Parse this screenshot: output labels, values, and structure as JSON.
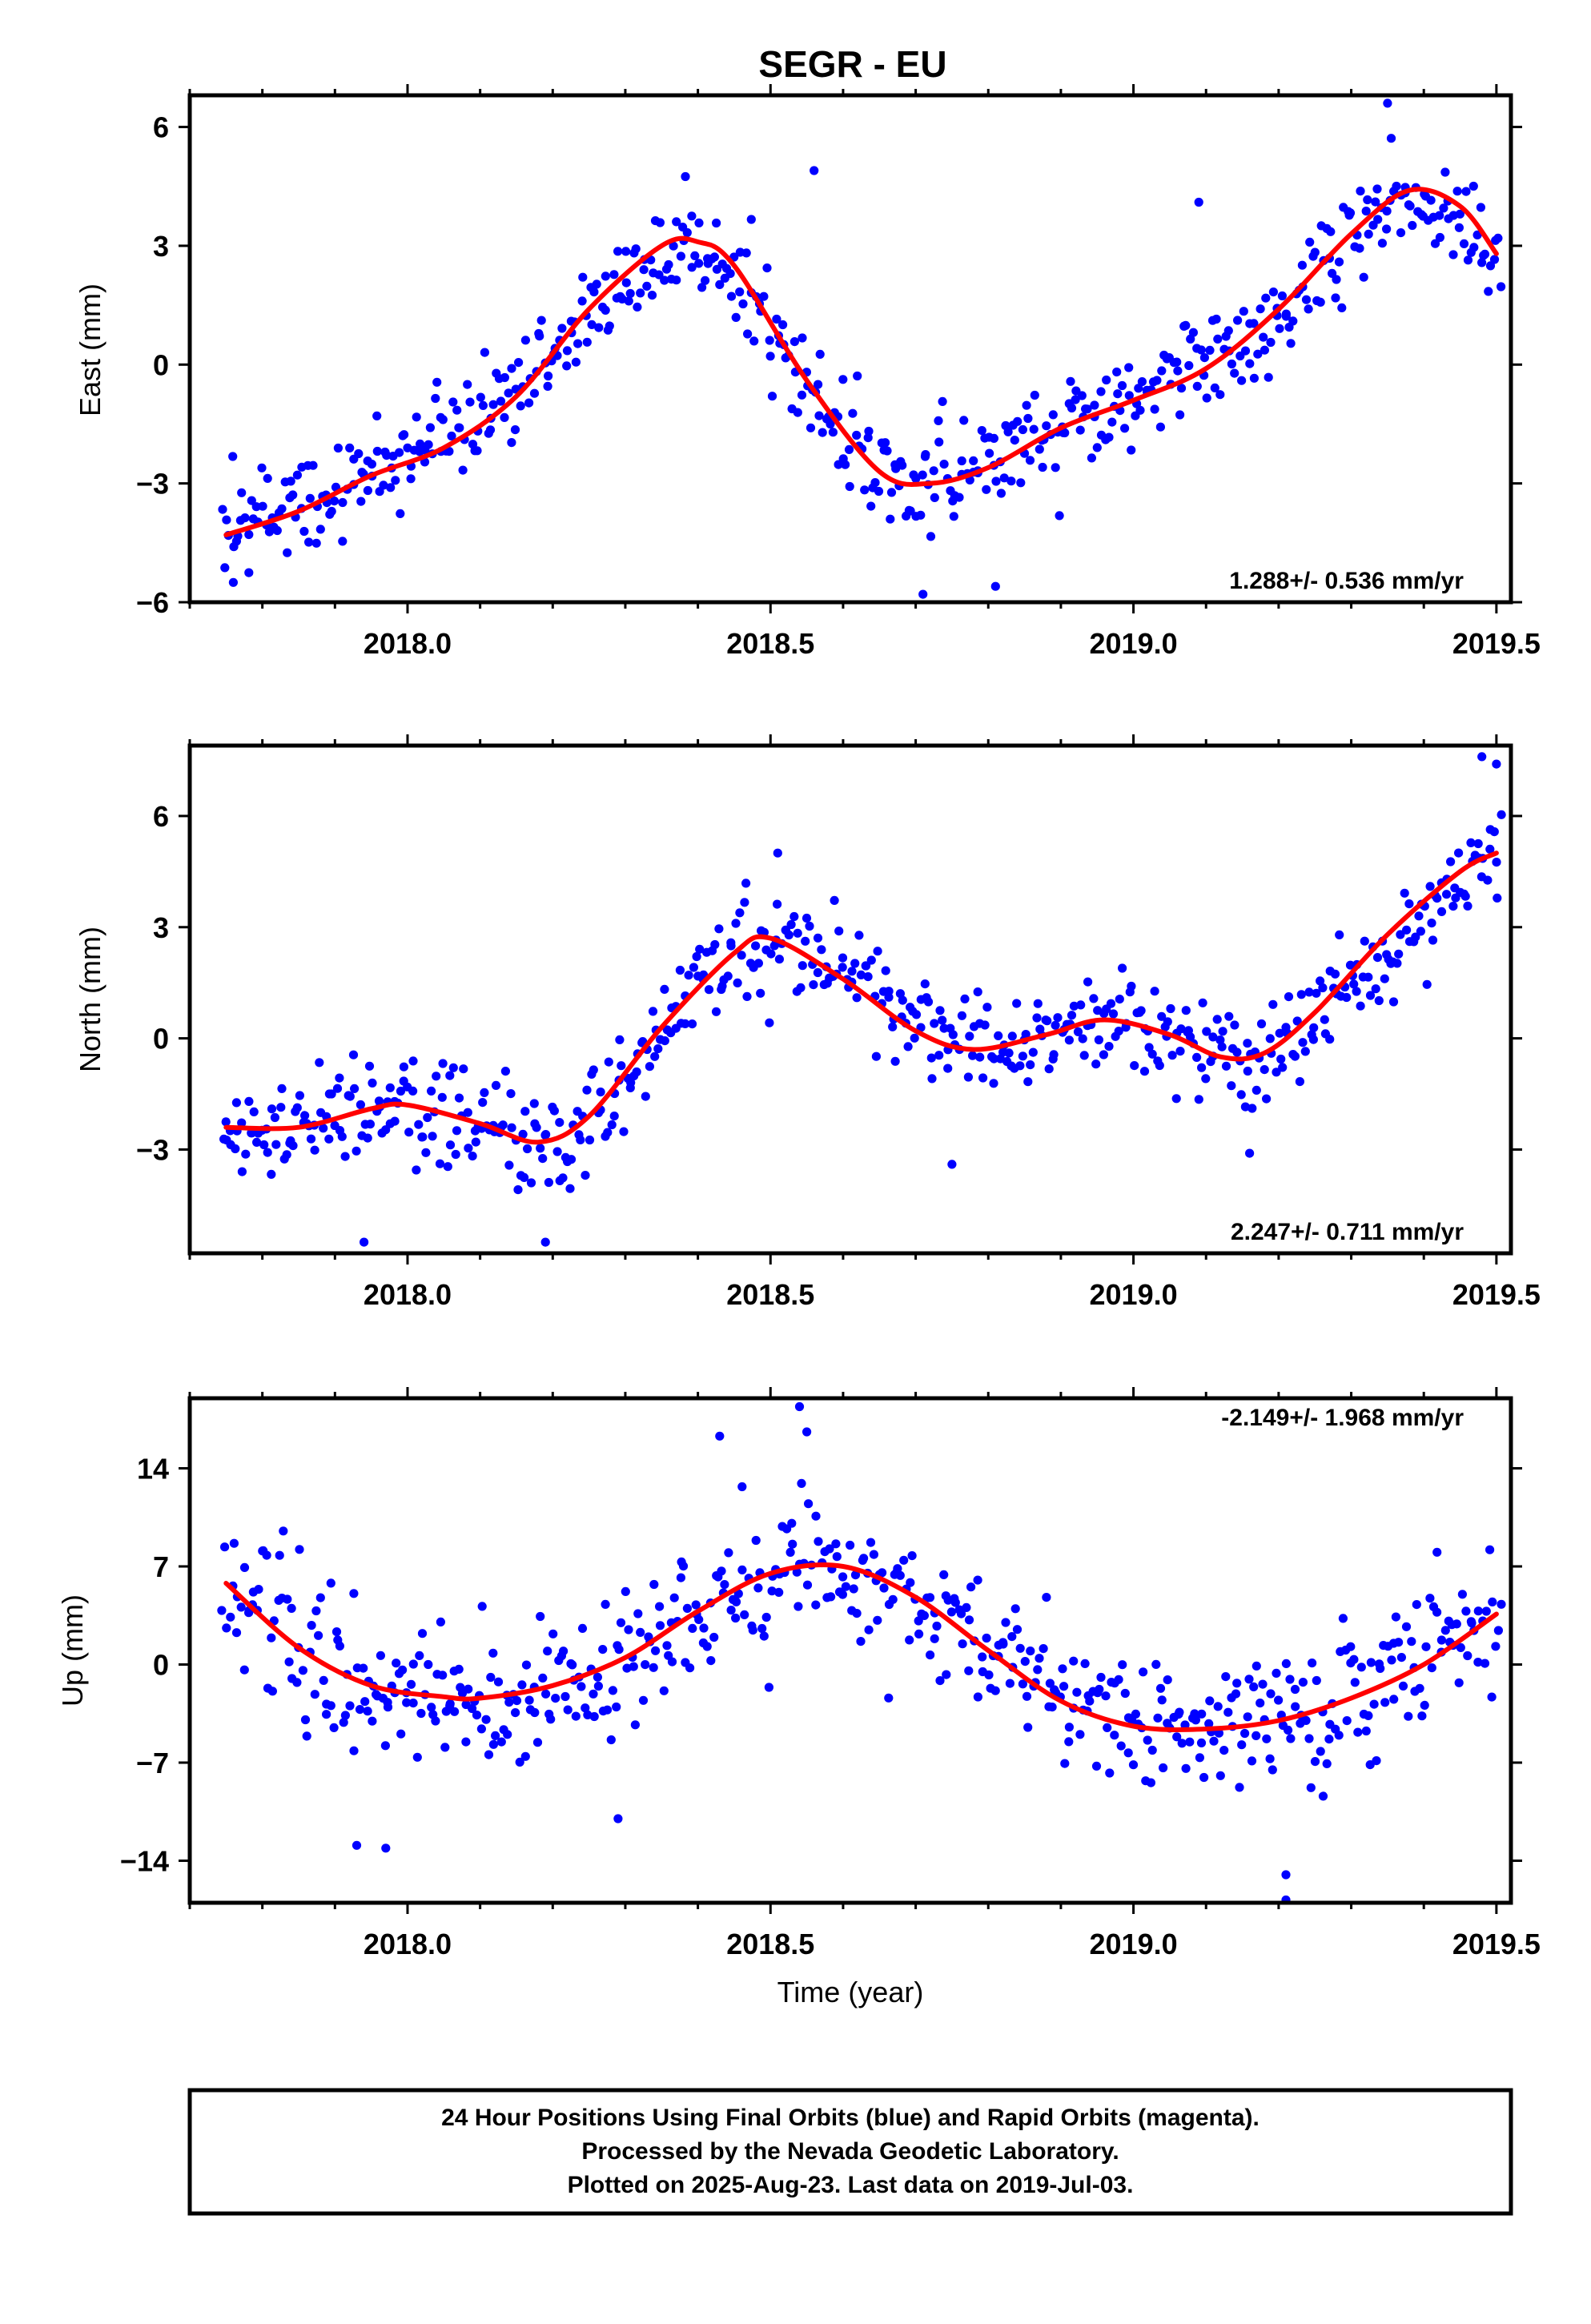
{
  "title": "SEGR - EU",
  "xlabel": "Time (year)",
  "footer": {
    "line1": "24 Hour Positions Using Final Orbits (blue) and Rapid Orbits (magenta).",
    "line2": "Processed by the Nevada Geodetic Laboratory.",
    "line3": "Plotted on 2025-Aug-23. Last data on 2019-Jul-03."
  },
  "colors": {
    "points": "#0000ff",
    "fit": "#ff0000",
    "frame": "#000000"
  },
  "chart_data": [
    {
      "type": "scatter",
      "panel": "east",
      "ylabel": "East (mm)",
      "xlim": [
        2017.7,
        2019.52
      ],
      "ylim": [
        -6,
        6.8
      ],
      "xticks": [
        "2018.0",
        "2018.5",
        "2019.0",
        "2019.5"
      ],
      "yticks": [
        "6",
        "3",
        "0",
        "−3",
        "−6"
      ],
      "rate_label": "1.288+/- 0.536 mm/yr",
      "rate_position": "bottom-right",
      "fit_x": [
        2017.75,
        2017.85,
        2017.95,
        2018.05,
        2018.15,
        2018.25,
        2018.35,
        2018.4,
        2018.45,
        2018.55,
        2018.65,
        2018.72,
        2018.8,
        2018.9,
        2019.0,
        2019.1,
        2019.2,
        2019.3,
        2019.38,
        2019.45,
        2019.5
      ],
      "fit_y": [
        -4.3,
        -3.7,
        -2.8,
        -2.1,
        -0.8,
        1.4,
        3.0,
        3.1,
        2.5,
        -0.4,
        -2.7,
        -3.0,
        -2.6,
        -1.6,
        -0.9,
        -0.1,
        1.4,
        3.3,
        4.4,
        4.0,
        2.8
      ],
      "trend": [
        [
          2017.75,
          -4.2
        ],
        [
          2017.9,
          -3.3
        ],
        [
          2018.0,
          -2.4
        ],
        [
          2018.1,
          -1.5
        ],
        [
          2018.2,
          0.2
        ],
        [
          2018.3,
          2.3
        ],
        [
          2018.38,
          3.1
        ],
        [
          2018.45,
          2.3
        ],
        [
          2018.55,
          -0.6
        ],
        [
          2018.62,
          -2.4
        ],
        [
          2018.72,
          -3.0
        ],
        [
          2018.85,
          -2.0
        ],
        [
          2019.0,
          -0.9
        ],
        [
          2019.1,
          -0.1
        ],
        [
          2019.2,
          1.2
        ],
        [
          2019.3,
          3.2
        ],
        [
          2019.4,
          4.3
        ],
        [
          2019.5,
          2.6
        ]
      ],
      "noise": 1.0,
      "n_points": 560,
      "outliers": [
        [
          2018.56,
          4.9
        ],
        [
          2018.71,
          -5.8
        ],
        [
          2018.81,
          -5.6
        ],
        [
          2019.35,
          6.6
        ],
        [
          2019.09,
          4.1
        ],
        [
          2017.76,
          -5.5
        ]
      ]
    },
    {
      "type": "scatter",
      "panel": "north",
      "ylabel": "North (mm)",
      "xlim": [
        2017.7,
        2019.52
      ],
      "ylim": [
        -5.8,
        7.9
      ],
      "xticks": [
        "2018.0",
        "2018.5",
        "2019.0",
        "2019.5"
      ],
      "yticks": [
        "6",
        "3",
        "0",
        "−3"
      ],
      "rate_label": "2.247+/- 0.711 mm/yr",
      "rate_position": "bottom-right",
      "fit_x": [
        2017.75,
        2017.85,
        2017.95,
        2018.0,
        2018.1,
        2018.18,
        2018.25,
        2018.35,
        2018.45,
        2018.5,
        2018.6,
        2018.7,
        2018.78,
        2018.88,
        2018.96,
        2019.05,
        2019.12,
        2019.18,
        2019.25,
        2019.35,
        2019.45,
        2019.5
      ],
      "fit_y": [
        -2.4,
        -2.4,
        -1.9,
        -1.8,
        -2.3,
        -2.8,
        -2.1,
        0.3,
        2.3,
        2.7,
        1.6,
        0.2,
        -0.3,
        0.1,
        0.5,
        0.1,
        -0.5,
        -0.4,
        0.7,
        2.8,
        4.5,
        5.0
      ],
      "trend": [
        [
          2017.75,
          -2.6
        ],
        [
          2017.85,
          -2.2
        ],
        [
          2017.95,
          -2.0
        ],
        [
          2018.05,
          -2.0
        ],
        [
          2018.15,
          -2.6
        ],
        [
          2018.22,
          -2.8
        ],
        [
          2018.3,
          -1.3
        ],
        [
          2018.38,
          1.0
        ],
        [
          2018.45,
          2.3
        ],
        [
          2018.52,
          2.7
        ],
        [
          2018.6,
          1.8
        ],
        [
          2018.7,
          0.4
        ],
        [
          2018.8,
          -0.2
        ],
        [
          2018.9,
          0.1
        ],
        [
          2018.97,
          0.5
        ],
        [
          2019.05,
          0.1
        ],
        [
          2019.15,
          -0.6
        ],
        [
          2019.22,
          0.0
        ],
        [
          2019.3,
          1.5
        ],
        [
          2019.4,
          3.4
        ],
        [
          2019.5,
          5.2
        ]
      ],
      "noise": 1.1,
      "n_points": 560,
      "outliers": [
        [
          2017.94,
          -5.5
        ],
        [
          2018.19,
          -5.5
        ],
        [
          2018.75,
          -3.4
        ],
        [
          2019.16,
          -3.1
        ],
        [
          2019.48,
          7.6
        ],
        [
          2019.5,
          7.4
        ],
        [
          2018.51,
          5.0
        ]
      ]
    },
    {
      "type": "scatter",
      "panel": "up",
      "ylabel": "Up (mm)",
      "xlim": [
        2017.7,
        2019.52
      ],
      "ylim": [
        -17,
        19
      ],
      "xticks": [
        "2018.0",
        "2018.5",
        "2019.0",
        "2019.5"
      ],
      "yticks": [
        "14",
        "7",
        "0",
        "−7",
        "−14"
      ],
      "rate_label": "-2.149+/- 1.968 mm/yr",
      "rate_position": "top-right",
      "fit_x": [
        2017.75,
        2017.85,
        2017.95,
        2018.05,
        2018.1,
        2018.2,
        2018.3,
        2018.4,
        2018.5,
        2018.6,
        2018.7,
        2018.8,
        2018.9,
        2019.0,
        2019.1,
        2019.2,
        2019.3,
        2019.4,
        2019.5
      ],
      "fit_y": [
        5.8,
        1.2,
        -1.5,
        -2.3,
        -2.4,
        -1.5,
        0.5,
        3.8,
        6.5,
        7.0,
        4.8,
        1.0,
        -2.6,
        -4.4,
        -4.6,
        -4.0,
        -2.4,
        0.0,
        3.6
      ],
      "trend": [
        [
          2017.75,
          5.5
        ],
        [
          2017.85,
          1.0
        ],
        [
          2017.95,
          -1.8
        ],
        [
          2018.05,
          -2.5
        ],
        [
          2018.15,
          -2.2
        ],
        [
          2018.25,
          -0.8
        ],
        [
          2018.35,
          1.8
        ],
        [
          2018.45,
          4.8
        ],
        [
          2018.55,
          6.8
        ],
        [
          2018.65,
          6.6
        ],
        [
          2018.75,
          3.2
        ],
        [
          2018.85,
          -0.6
        ],
        [
          2018.95,
          -3.5
        ],
        [
          2019.05,
          -4.5
        ],
        [
          2019.15,
          -4.4
        ],
        [
          2019.25,
          -3.3
        ],
        [
          2019.35,
          -1.4
        ],
        [
          2019.45,
          1.6
        ],
        [
          2019.5,
          3.6
        ]
      ],
      "noise": 3.9,
      "n_points": 560,
      "outliers": [
        [
          2018.54,
          18.4
        ],
        [
          2018.55,
          16.6
        ],
        [
          2018.43,
          16.3
        ],
        [
          2019.21,
          -16.8
        ],
        [
          2019.21,
          -15.0
        ],
        [
          2018.29,
          -11.0
        ],
        [
          2017.93,
          -12.9
        ],
        [
          2017.97,
          -13.1
        ]
      ]
    }
  ]
}
